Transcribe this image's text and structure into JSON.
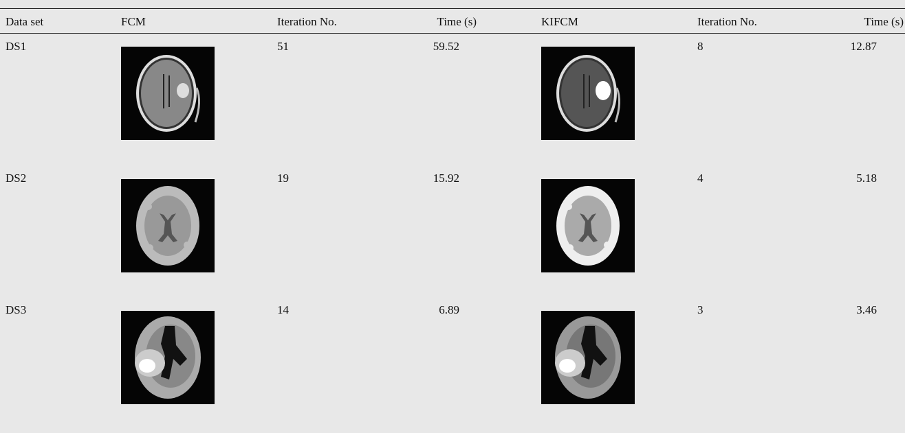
{
  "table": {
    "columns": [
      "Data set",
      "FCM",
      "Iteration No.",
      "Time (s)",
      "KIFCM",
      "Iteration No.",
      "Time (s)"
    ],
    "rows": [
      [
        "DS1",
        "51",
        "59.52",
        "8",
        "12.87"
      ],
      [
        "DS2",
        "19",
        "15.92",
        "4",
        "5.18"
      ],
      [
        "DS3",
        "14",
        "6.89",
        "3",
        "3.46"
      ]
    ]
  }
}
